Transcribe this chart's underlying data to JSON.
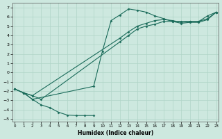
{
  "xlabel": "Humidex (Indice chaleur)",
  "xlim": [
    -0.3,
    23.3
  ],
  "ylim": [
    -5.3,
    7.5
  ],
  "xticks": [
    0,
    1,
    2,
    3,
    4,
    5,
    6,
    7,
    8,
    9,
    10,
    11,
    12,
    13,
    14,
    15,
    16,
    17,
    18,
    19,
    20,
    21,
    22,
    23
  ],
  "yticks": [
    -5,
    -4,
    -3,
    -2,
    -1,
    0,
    1,
    2,
    3,
    4,
    5,
    6,
    7
  ],
  "bg_color": "#cde8df",
  "grid_color": "#b0d4c8",
  "line_color": "#1a6b5a",
  "lines": [
    {
      "x": [
        0,
        1,
        2,
        3,
        4,
        5,
        6,
        7,
        8,
        9
      ],
      "y": [
        -1.8,
        -2.2,
        -2.9,
        -3.5,
        -3.8,
        -4.3,
        -4.6,
        -4.65,
        -4.65,
        -4.65
      ]
    },
    {
      "x": [
        0,
        1,
        2,
        9,
        10,
        11,
        12,
        13,
        14,
        15,
        16,
        17,
        18,
        19,
        20,
        21,
        22,
        23
      ],
      "y": [
        -1.8,
        -2.2,
        -2.9,
        -1.5,
        2.3,
        5.6,
        6.2,
        6.85,
        6.7,
        6.5,
        6.1,
        5.8,
        5.5,
        5.5,
        5.5,
        5.5,
        6.1,
        6.5
      ]
    },
    {
      "x": [
        0,
        1,
        2,
        3,
        12,
        13,
        14,
        15,
        16,
        17,
        18,
        19,
        20,
        21,
        22,
        23
      ],
      "y": [
        -1.8,
        -2.2,
        -2.5,
        -2.9,
        3.3,
        4.0,
        4.7,
        5.0,
        5.2,
        5.5,
        5.5,
        5.3,
        5.4,
        5.4,
        5.7,
        6.5
      ]
    },
    {
      "x": [
        0,
        1,
        2,
        12,
        13,
        14,
        15,
        16,
        17,
        18,
        19,
        20,
        21,
        22,
        23
      ],
      "y": [
        -1.8,
        -2.2,
        -2.5,
        3.7,
        4.4,
        5.0,
        5.3,
        5.6,
        5.7,
        5.6,
        5.4,
        5.5,
        5.5,
        5.8,
        6.5
      ]
    }
  ]
}
